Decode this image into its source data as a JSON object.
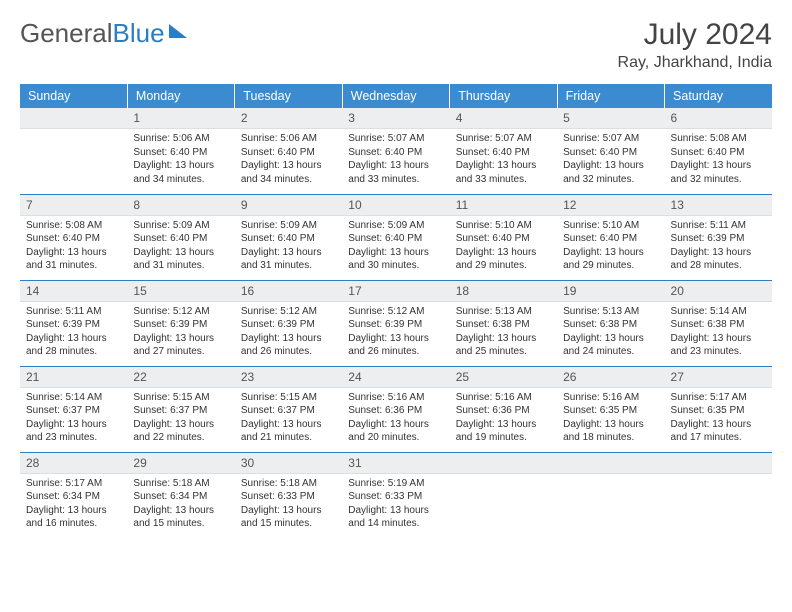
{
  "logo": {
    "text_a": "General",
    "text_b": "Blue"
  },
  "title": "July 2024",
  "location": "Ray, Jharkhand, India",
  "colors": {
    "header_bg": "#3a8bd0",
    "header_text": "#ffffff",
    "daynum_bg": "#eceef0",
    "week_border": "#2a7ec4",
    "body_text": "#333333"
  },
  "weekdays": [
    "Sunday",
    "Monday",
    "Tuesday",
    "Wednesday",
    "Thursday",
    "Friday",
    "Saturday"
  ],
  "weeks": [
    [
      null,
      {
        "n": "1",
        "sr": "Sunrise: 5:06 AM",
        "ss": "Sunset: 6:40 PM",
        "dl1": "Daylight: 13 hours",
        "dl2": "and 34 minutes."
      },
      {
        "n": "2",
        "sr": "Sunrise: 5:06 AM",
        "ss": "Sunset: 6:40 PM",
        "dl1": "Daylight: 13 hours",
        "dl2": "and 34 minutes."
      },
      {
        "n": "3",
        "sr": "Sunrise: 5:07 AM",
        "ss": "Sunset: 6:40 PM",
        "dl1": "Daylight: 13 hours",
        "dl2": "and 33 minutes."
      },
      {
        "n": "4",
        "sr": "Sunrise: 5:07 AM",
        "ss": "Sunset: 6:40 PM",
        "dl1": "Daylight: 13 hours",
        "dl2": "and 33 minutes."
      },
      {
        "n": "5",
        "sr": "Sunrise: 5:07 AM",
        "ss": "Sunset: 6:40 PM",
        "dl1": "Daylight: 13 hours",
        "dl2": "and 32 minutes."
      },
      {
        "n": "6",
        "sr": "Sunrise: 5:08 AM",
        "ss": "Sunset: 6:40 PM",
        "dl1": "Daylight: 13 hours",
        "dl2": "and 32 minutes."
      }
    ],
    [
      {
        "n": "7",
        "sr": "Sunrise: 5:08 AM",
        "ss": "Sunset: 6:40 PM",
        "dl1": "Daylight: 13 hours",
        "dl2": "and 31 minutes."
      },
      {
        "n": "8",
        "sr": "Sunrise: 5:09 AM",
        "ss": "Sunset: 6:40 PM",
        "dl1": "Daylight: 13 hours",
        "dl2": "and 31 minutes."
      },
      {
        "n": "9",
        "sr": "Sunrise: 5:09 AM",
        "ss": "Sunset: 6:40 PM",
        "dl1": "Daylight: 13 hours",
        "dl2": "and 31 minutes."
      },
      {
        "n": "10",
        "sr": "Sunrise: 5:09 AM",
        "ss": "Sunset: 6:40 PM",
        "dl1": "Daylight: 13 hours",
        "dl2": "and 30 minutes."
      },
      {
        "n": "11",
        "sr": "Sunrise: 5:10 AM",
        "ss": "Sunset: 6:40 PM",
        "dl1": "Daylight: 13 hours",
        "dl2": "and 29 minutes."
      },
      {
        "n": "12",
        "sr": "Sunrise: 5:10 AM",
        "ss": "Sunset: 6:40 PM",
        "dl1": "Daylight: 13 hours",
        "dl2": "and 29 minutes."
      },
      {
        "n": "13",
        "sr": "Sunrise: 5:11 AM",
        "ss": "Sunset: 6:39 PM",
        "dl1": "Daylight: 13 hours",
        "dl2": "and 28 minutes."
      }
    ],
    [
      {
        "n": "14",
        "sr": "Sunrise: 5:11 AM",
        "ss": "Sunset: 6:39 PM",
        "dl1": "Daylight: 13 hours",
        "dl2": "and 28 minutes."
      },
      {
        "n": "15",
        "sr": "Sunrise: 5:12 AM",
        "ss": "Sunset: 6:39 PM",
        "dl1": "Daylight: 13 hours",
        "dl2": "and 27 minutes."
      },
      {
        "n": "16",
        "sr": "Sunrise: 5:12 AM",
        "ss": "Sunset: 6:39 PM",
        "dl1": "Daylight: 13 hours",
        "dl2": "and 26 minutes."
      },
      {
        "n": "17",
        "sr": "Sunrise: 5:12 AM",
        "ss": "Sunset: 6:39 PM",
        "dl1": "Daylight: 13 hours",
        "dl2": "and 26 minutes."
      },
      {
        "n": "18",
        "sr": "Sunrise: 5:13 AM",
        "ss": "Sunset: 6:38 PM",
        "dl1": "Daylight: 13 hours",
        "dl2": "and 25 minutes."
      },
      {
        "n": "19",
        "sr": "Sunrise: 5:13 AM",
        "ss": "Sunset: 6:38 PM",
        "dl1": "Daylight: 13 hours",
        "dl2": "and 24 minutes."
      },
      {
        "n": "20",
        "sr": "Sunrise: 5:14 AM",
        "ss": "Sunset: 6:38 PM",
        "dl1": "Daylight: 13 hours",
        "dl2": "and 23 minutes."
      }
    ],
    [
      {
        "n": "21",
        "sr": "Sunrise: 5:14 AM",
        "ss": "Sunset: 6:37 PM",
        "dl1": "Daylight: 13 hours",
        "dl2": "and 23 minutes."
      },
      {
        "n": "22",
        "sr": "Sunrise: 5:15 AM",
        "ss": "Sunset: 6:37 PM",
        "dl1": "Daylight: 13 hours",
        "dl2": "and 22 minutes."
      },
      {
        "n": "23",
        "sr": "Sunrise: 5:15 AM",
        "ss": "Sunset: 6:37 PM",
        "dl1": "Daylight: 13 hours",
        "dl2": "and 21 minutes."
      },
      {
        "n": "24",
        "sr": "Sunrise: 5:16 AM",
        "ss": "Sunset: 6:36 PM",
        "dl1": "Daylight: 13 hours",
        "dl2": "and 20 minutes."
      },
      {
        "n": "25",
        "sr": "Sunrise: 5:16 AM",
        "ss": "Sunset: 6:36 PM",
        "dl1": "Daylight: 13 hours",
        "dl2": "and 19 minutes."
      },
      {
        "n": "26",
        "sr": "Sunrise: 5:16 AM",
        "ss": "Sunset: 6:35 PM",
        "dl1": "Daylight: 13 hours",
        "dl2": "and 18 minutes."
      },
      {
        "n": "27",
        "sr": "Sunrise: 5:17 AM",
        "ss": "Sunset: 6:35 PM",
        "dl1": "Daylight: 13 hours",
        "dl2": "and 17 minutes."
      }
    ],
    [
      {
        "n": "28",
        "sr": "Sunrise: 5:17 AM",
        "ss": "Sunset: 6:34 PM",
        "dl1": "Daylight: 13 hours",
        "dl2": "and 16 minutes."
      },
      {
        "n": "29",
        "sr": "Sunrise: 5:18 AM",
        "ss": "Sunset: 6:34 PM",
        "dl1": "Daylight: 13 hours",
        "dl2": "and 15 minutes."
      },
      {
        "n": "30",
        "sr": "Sunrise: 5:18 AM",
        "ss": "Sunset: 6:33 PM",
        "dl1": "Daylight: 13 hours",
        "dl2": "and 15 minutes."
      },
      {
        "n": "31",
        "sr": "Sunrise: 5:19 AM",
        "ss": "Sunset: 6:33 PM",
        "dl1": "Daylight: 13 hours",
        "dl2": "and 14 minutes."
      },
      null,
      null,
      null
    ]
  ]
}
